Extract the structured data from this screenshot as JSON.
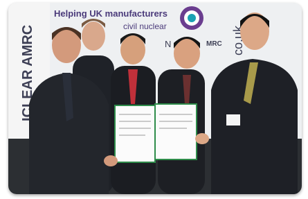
{
  "banner": {
    "headline": "Helping UK manufacturers",
    "subline": "civil nuclear",
    "side_text": "ICLEAR AMRC",
    "logo_left": "N",
    "logo_right": "MRC",
    "web": "co.uk"
  }
}
